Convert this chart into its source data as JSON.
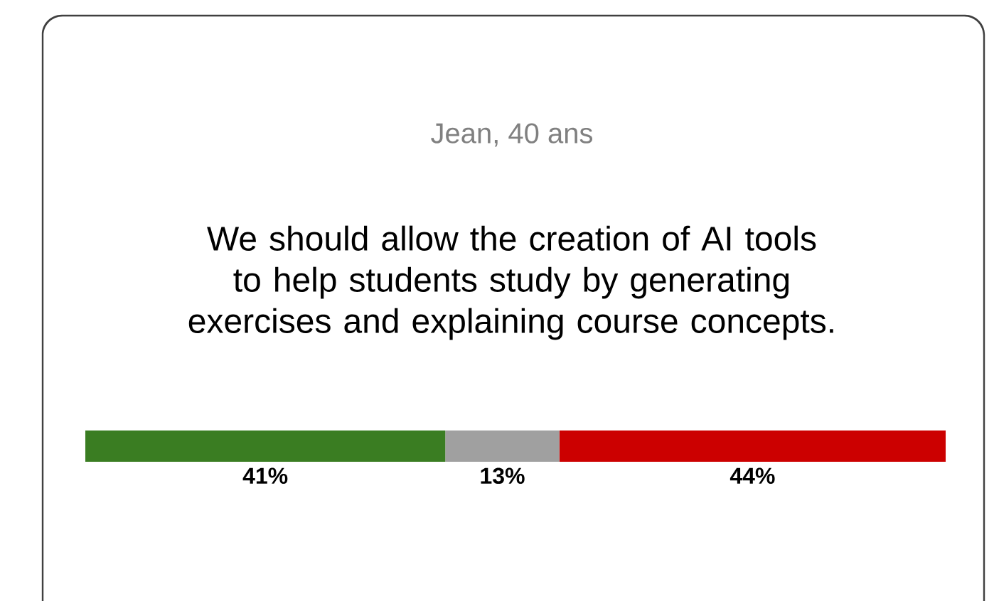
{
  "chart_data": {
    "type": "bar",
    "orientation": "horizontal",
    "stacked": true,
    "subtitle": "Jean, 40 ans",
    "title": "We should allow the creation of AI tools to help students study by generating exercises and explaining course concepts.",
    "categories": [
      null
    ],
    "series": [
      {
        "color": "#3a7d22",
        "values": [
          41
        ],
        "value_labels": [
          "41%"
        ]
      },
      {
        "color": "#a0a0a0",
        "values": [
          13
        ],
        "value_labels": [
          "13%"
        ]
      },
      {
        "color": "#cc0000",
        "values": [
          44
        ],
        "value_labels": [
          "44%"
        ]
      }
    ]
  }
}
